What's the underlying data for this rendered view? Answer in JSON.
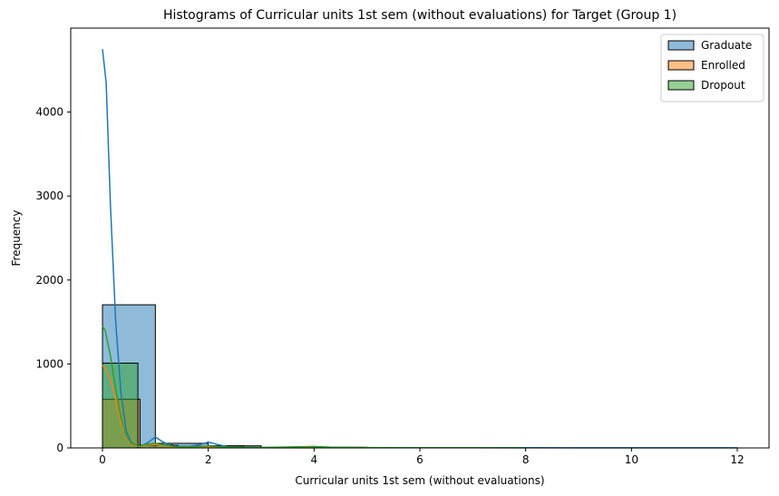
{
  "chart_data": {
    "type": "histogram",
    "title": "Histograms of Curricular units 1st sem (without evaluations) for Target (Group 1)",
    "xlabel": "Curricular units 1st sem (without evaluations)",
    "ylabel": "Frequency",
    "xlim": [
      -0.6,
      12.6
    ],
    "ylim": [
      0,
      5000
    ],
    "x_ticks": [
      0,
      2,
      4,
      6,
      8,
      10,
      12
    ],
    "y_ticks": [
      0,
      1000,
      2000,
      3000,
      4000
    ],
    "grid": false,
    "legend_position": "top-right",
    "series": [
      {
        "name": "Graduate",
        "color": "#1f77b4",
        "bins": [
          {
            "x0": 0,
            "x1": 1,
            "count": 1705
          },
          {
            "x0": 1,
            "x1": 2,
            "count": 55
          },
          {
            "x0": 2,
            "x1": 3,
            "count": 25
          },
          {
            "x0": 3,
            "x1": 4,
            "count": 5
          },
          {
            "x0": 4,
            "x1": 5,
            "count": 8
          },
          {
            "x0": 5,
            "x1": 6,
            "count": 3
          },
          {
            "x0": 6,
            "x1": 7,
            "count": 3
          },
          {
            "x0": 7,
            "x1": 8,
            "count": 2
          },
          {
            "x0": 8,
            "x1": 9,
            "count": 1
          },
          {
            "x0": 9,
            "x1": 10,
            "count": 1
          },
          {
            "x0": 10,
            "x1": 11,
            "count": 1
          },
          {
            "x0": 11,
            "x1": 12,
            "count": 1
          }
        ],
        "kde": [
          [
            0,
            4750
          ],
          [
            0.07,
            4350
          ],
          [
            0.15,
            2900
          ],
          [
            0.25,
            1500
          ],
          [
            0.35,
            650
          ],
          [
            0.45,
            200
          ],
          [
            0.55,
            60
          ],
          [
            0.7,
            15
          ],
          [
            0.85,
            60
          ],
          [
            1,
            130
          ],
          [
            1.12,
            80
          ],
          [
            1.3,
            20
          ],
          [
            1.6,
            15
          ],
          [
            1.85,
            40
          ],
          [
            2,
            70
          ],
          [
            2.15,
            45
          ],
          [
            2.4,
            10
          ],
          [
            3,
            5
          ],
          [
            3.5,
            5
          ],
          [
            4,
            8
          ],
          [
            5,
            3
          ],
          [
            6,
            3
          ],
          [
            8,
            2
          ],
          [
            10,
            1
          ],
          [
            12,
            1
          ]
        ]
      },
      {
        "name": "Enrolled",
        "color": "#ff7f0e",
        "bins": [
          {
            "x0": 0,
            "x1": 0.71,
            "count": 580
          },
          {
            "x0": 0.71,
            "x1": 1.43,
            "count": 30
          },
          {
            "x0": 1.43,
            "x1": 2.14,
            "count": 15
          },
          {
            "x0": 2.14,
            "x1": 2.86,
            "count": 5
          },
          {
            "x0": 2.86,
            "x1": 3.57,
            "count": 2
          },
          {
            "x0": 3.57,
            "x1": 4.29,
            "count": 1
          }
        ],
        "kde": [
          [
            0,
            980
          ],
          [
            0.05,
            960
          ],
          [
            0.15,
            820
          ],
          [
            0.25,
            580
          ],
          [
            0.35,
            300
          ],
          [
            0.45,
            120
          ],
          [
            0.55,
            40
          ],
          [
            0.7,
            20
          ],
          [
            0.85,
            35
          ],
          [
            1,
            40
          ],
          [
            1.15,
            25
          ],
          [
            1.4,
            10
          ],
          [
            1.8,
            8
          ],
          [
            2,
            10
          ],
          [
            2.3,
            5
          ],
          [
            3,
            2
          ],
          [
            4,
            1
          ]
        ]
      },
      {
        "name": "Dropout",
        "color": "#2ca02c",
        "bins": [
          {
            "x0": 0,
            "x1": 0.67,
            "count": 1010
          },
          {
            "x0": 0.67,
            "x1": 1.33,
            "count": 35
          },
          {
            "x0": 1.33,
            "x1": 2,
            "count": 20
          },
          {
            "x0": 2,
            "x1": 2.67,
            "count": 25
          },
          {
            "x0": 2.67,
            "x1": 3.33,
            "count": 5
          },
          {
            "x0": 3.33,
            "x1": 4,
            "count": 2
          }
        ],
        "kde": [
          [
            0,
            1450
          ],
          [
            0.05,
            1400
          ],
          [
            0.15,
            1100
          ],
          [
            0.25,
            700
          ],
          [
            0.35,
            350
          ],
          [
            0.45,
            140
          ],
          [
            0.55,
            50
          ],
          [
            0.7,
            25
          ],
          [
            0.85,
            45
          ],
          [
            1,
            55
          ],
          [
            1.15,
            35
          ],
          [
            1.4,
            15
          ],
          [
            1.8,
            15
          ],
          [
            2,
            25
          ],
          [
            2.2,
            15
          ],
          [
            2.6,
            8
          ],
          [
            3,
            5
          ],
          [
            4,
            18
          ],
          [
            4.3,
            10
          ],
          [
            5,
            4
          ],
          [
            6,
            2
          ],
          [
            7,
            2
          ],
          [
            8,
            1
          ]
        ]
      }
    ]
  }
}
